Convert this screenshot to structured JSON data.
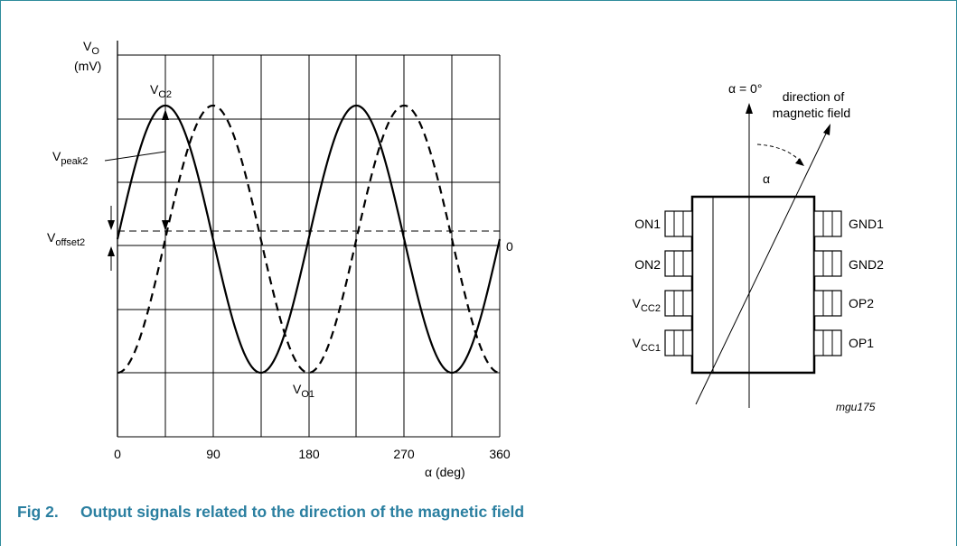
{
  "figure": {
    "caption_number": "Fig 2.",
    "caption_text": "Output signals related to the direction of the magnetic field",
    "ref_code": "mgu175"
  },
  "graph": {
    "y_label_main": "V",
    "y_label_sub": "O",
    "y_unit": "(mV)",
    "x_label": "α (deg)",
    "x_ticks": [
      "0",
      "90",
      "180",
      "270",
      "360"
    ],
    "zero_label": "0",
    "vo2_main": "V",
    "vo2_sub": "O2",
    "vo1_main": "V",
    "vo1_sub": "O1",
    "vpeak_main": "V",
    "vpeak_sub": "peak2",
    "voffset_main": "V",
    "voffset_sub": "offset2"
  },
  "chart_data": {
    "type": "line",
    "xlabel": "α (deg)",
    "ylabel": "VO (mV)",
    "xlim": [
      0,
      360
    ],
    "x_ticks": [
      0,
      90,
      180,
      270,
      360
    ],
    "grid": true,
    "series": [
      {
        "name": "VO2",
        "style": "solid",
        "period_deg": 180,
        "phase_deg": 0,
        "offset": 1,
        "amplitude": 5
      },
      {
        "name": "VO1",
        "style": "dashed",
        "period_deg": 180,
        "phase_deg": 45,
        "offset": 1,
        "amplitude": 5
      }
    ]
  },
  "sensor": {
    "alpha_zero_label": "α = 0°",
    "field_label_line1": "direction of",
    "field_label_line2": "magnetic field",
    "alpha_label": "α",
    "left_pins": [
      {
        "main": "ON1",
        "sub": ""
      },
      {
        "main": "ON2",
        "sub": ""
      },
      {
        "main": "V",
        "sub": "CC2"
      },
      {
        "main": "V",
        "sub": "CC1"
      }
    ],
    "right_pins": [
      "GND1",
      "GND2",
      "OP2",
      "OP1"
    ]
  }
}
